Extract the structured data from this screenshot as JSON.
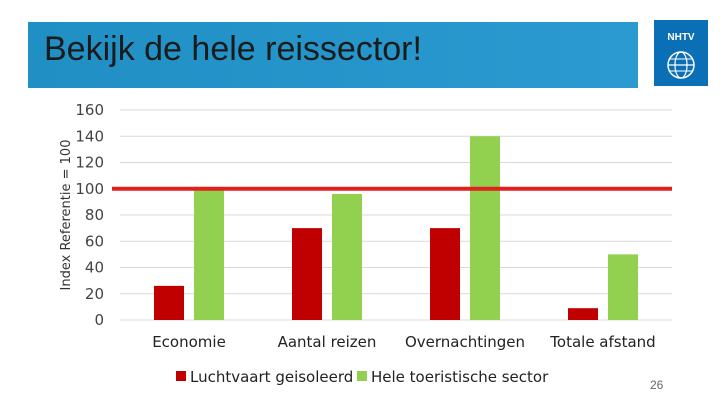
{
  "slide": {
    "title": "Bekijk de hele reissector!",
    "logo_text": "NHTV",
    "page_number": "26",
    "banner_color": "#2196cc",
    "logo_color": "#0a6fb4"
  },
  "chart_data": {
    "type": "bar",
    "title": "",
    "xlabel": "",
    "ylabel": "Index Referentie = 100",
    "ylim": [
      0,
      160
    ],
    "yticks": [
      0,
      20,
      40,
      60,
      80,
      100,
      120,
      140,
      160
    ],
    "categories": [
      "Economie",
      "Aantal reizen",
      "Overnachtingen",
      "Totale afstand"
    ],
    "series": [
      {
        "name": "Luchtvaart geisoleerd",
        "color": "#c00000",
        "values": [
          26,
          70,
          70,
          9
        ]
      },
      {
        "name": "Hele toeristische sector",
        "color": "#92d050",
        "values": [
          100,
          96,
          140,
          50
        ]
      }
    ],
    "reference_line": {
      "value": 100,
      "color": "#e0201f"
    },
    "grid": true,
    "legend": "bottom"
  }
}
